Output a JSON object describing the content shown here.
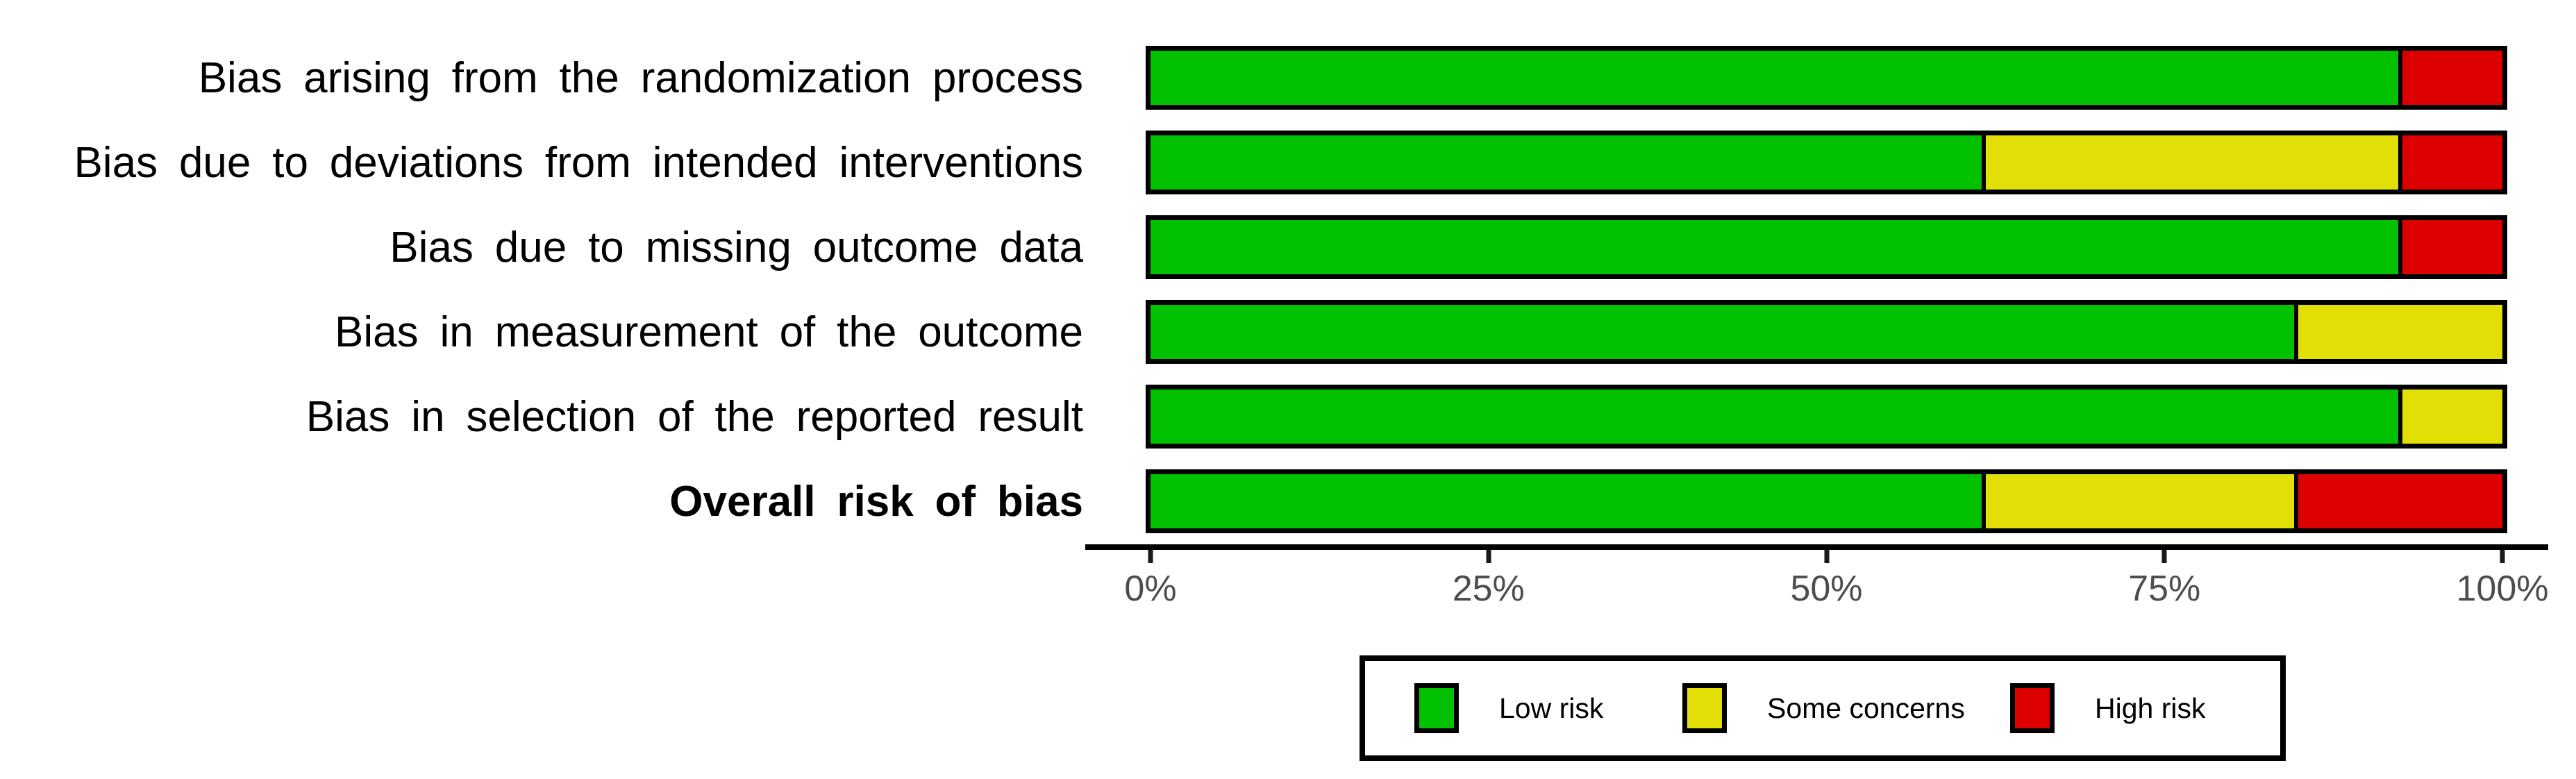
{
  "chart_data": {
    "type": "bar",
    "orientation": "horizontal",
    "stacked": true,
    "unit": "percent",
    "title": "",
    "xlabel": "",
    "ylabel": "",
    "xlim": [
      0,
      100
    ],
    "grid": false,
    "categories": [
      "Bias arising from the randomization process",
      "Bias due to deviations from intended interventions",
      "Bias due to missing outcome data",
      "Bias in measurement of the outcome",
      "Bias in selection of the reported result",
      "Overall risk of bias"
    ],
    "bold_category": "Overall risk of bias",
    "series": [
      {
        "name": "Low risk",
        "color": "#02C100",
        "values": [
          92.3,
          61.5,
          92.3,
          84.6,
          92.3,
          61.5
        ]
      },
      {
        "name": "Some concerns",
        "color": "#E2DF07",
        "values": [
          0,
          30.8,
          0,
          15.4,
          7.7,
          23.1
        ]
      },
      {
        "name": "High risk",
        "color": "#DD0000",
        "values": [
          7.7,
          7.7,
          7.7,
          0,
          0,
          15.4
        ]
      }
    ],
    "x_ticks": [
      {
        "value": 0,
        "label": "0%"
      },
      {
        "value": 25,
        "label": "25%"
      },
      {
        "value": 50,
        "label": "50%"
      },
      {
        "value": 75,
        "label": "75%"
      },
      {
        "value": 100,
        "label": "100%"
      }
    ],
    "legend": {
      "position": "bottom",
      "items": [
        {
          "label": "Low risk",
          "color": "#02C100"
        },
        {
          "label": "Some concerns",
          "color": "#E2DF07"
        },
        {
          "label": "High risk",
          "color": "#DD0000"
        }
      ]
    }
  }
}
